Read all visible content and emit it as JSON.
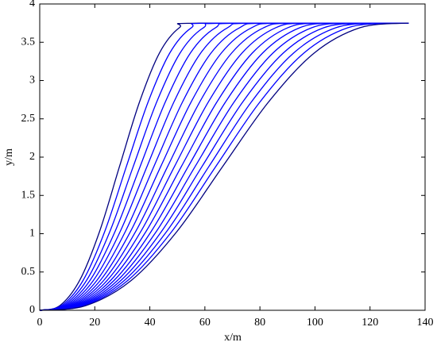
{
  "chart_data": {
    "type": "line",
    "xlabel": "x/m",
    "ylabel": "y/m",
    "xlim": [
      0,
      140
    ],
    "ylim": [
      0,
      4
    ],
    "xticks": [
      0,
      20,
      40,
      60,
      80,
      100,
      120,
      140
    ],
    "yticks": [
      0,
      0.5,
      1,
      1.5,
      2,
      2.5,
      3,
      3.5,
      4
    ],
    "series": [
      {
        "color": "#000080",
        "x": [
          0,
          7.25,
          14.5,
          21.75,
          29,
          36.25,
          43.5,
          50.75,
          58,
          134
        ],
        "values": [
          0,
          0.06,
          0.39,
          1.03,
          1.88,
          2.72,
          3.36,
          3.69,
          3.75,
          3.75
        ]
      },
      {
        "color": "#0000ff",
        "x": [
          0,
          7.875,
          15.75,
          23.625,
          31.5,
          39.375,
          47.25,
          55.125,
          63,
          134
        ],
        "values": [
          0,
          0.06,
          0.39,
          1.03,
          1.88,
          2.72,
          3.36,
          3.69,
          3.75,
          3.75
        ]
      },
      {
        "color": "#0000ff",
        "x": [
          0,
          8.5,
          17,
          25.5,
          34,
          42.5,
          51,
          59.5,
          68,
          134
        ],
        "values": [
          0,
          0.06,
          0.39,
          1.03,
          1.88,
          2.72,
          3.36,
          3.69,
          3.75,
          3.75
        ]
      },
      {
        "color": "#0000ff",
        "x": [
          0,
          9.125,
          18.25,
          27.375,
          36.5,
          45.625,
          54.75,
          63.875,
          73,
          134
        ],
        "values": [
          0,
          0.06,
          0.39,
          1.03,
          1.88,
          2.72,
          3.36,
          3.69,
          3.75,
          3.75
        ]
      },
      {
        "color": "#0000ff",
        "x": [
          0,
          9.75,
          19.5,
          29.25,
          39,
          48.75,
          58.5,
          68.25,
          78,
          134
        ],
        "values": [
          0,
          0.06,
          0.39,
          1.03,
          1.88,
          2.72,
          3.36,
          3.69,
          3.75,
          3.75
        ]
      },
      {
        "color": "#0000ff",
        "x": [
          0,
          10.375,
          20.75,
          31.125,
          41.5,
          51.875,
          62.25,
          72.625,
          83,
          134
        ],
        "values": [
          0,
          0.06,
          0.39,
          1.03,
          1.88,
          2.72,
          3.36,
          3.69,
          3.75,
          3.75
        ]
      },
      {
        "color": "#0000ff",
        "x": [
          0,
          11,
          22,
          33,
          44,
          55,
          66,
          77,
          88,
          134
        ],
        "values": [
          0,
          0.06,
          0.39,
          1.03,
          1.88,
          2.72,
          3.36,
          3.69,
          3.75,
          3.75
        ]
      },
      {
        "color": "#0000ff",
        "x": [
          0,
          11.625,
          23.25,
          34.875,
          46.5,
          58.125,
          69.75,
          81.375,
          93,
          134
        ],
        "values": [
          0,
          0.06,
          0.39,
          1.03,
          1.88,
          2.72,
          3.36,
          3.69,
          3.75,
          3.75
        ]
      },
      {
        "color": "#0000ff",
        "x": [
          0,
          12.25,
          24.5,
          36.75,
          49,
          61.25,
          73.5,
          85.75,
          98,
          134
        ],
        "values": [
          0,
          0.06,
          0.39,
          1.03,
          1.88,
          2.72,
          3.36,
          3.69,
          3.75,
          3.75
        ]
      },
      {
        "color": "#0000ff",
        "x": [
          0,
          12.875,
          25.75,
          38.625,
          51.5,
          64.375,
          77.25,
          90.125,
          103,
          134
        ],
        "values": [
          0,
          0.06,
          0.39,
          1.03,
          1.88,
          2.72,
          3.36,
          3.69,
          3.75,
          3.75
        ]
      },
      {
        "color": "#0000ff",
        "x": [
          0,
          13.5,
          27,
          40.5,
          54,
          67.5,
          81,
          94.5,
          108,
          134
        ],
        "values": [
          0,
          0.06,
          0.39,
          1.03,
          1.88,
          2.72,
          3.36,
          3.69,
          3.75,
          3.75
        ]
      },
      {
        "color": "#0000ff",
        "x": [
          0,
          14.125,
          28.25,
          42.375,
          56.5,
          70.625,
          84.75,
          98.875,
          113,
          134
        ],
        "values": [
          0,
          0.06,
          0.39,
          1.03,
          1.88,
          2.72,
          3.36,
          3.69,
          3.75,
          3.75
        ]
      },
      {
        "color": "#0000ff",
        "x": [
          0,
          14.75,
          29.5,
          44.25,
          59,
          73.75,
          88.5,
          103.25,
          118,
          134
        ],
        "values": [
          0,
          0.06,
          0.39,
          1.03,
          1.88,
          2.72,
          3.36,
          3.69,
          3.75,
          3.75
        ]
      },
      {
        "color": "#0000ff",
        "x": [
          0,
          15.375,
          30.75,
          46.125,
          61.5,
          76.875,
          92.25,
          107.625,
          123,
          134
        ],
        "values": [
          0,
          0.06,
          0.39,
          1.03,
          1.88,
          2.72,
          3.36,
          3.69,
          3.75,
          3.75
        ]
      },
      {
        "color": "#0000ff",
        "x": [
          0,
          16,
          32,
          48,
          64,
          80,
          96,
          112,
          128,
          134
        ],
        "values": [
          0,
          0.06,
          0.39,
          1.03,
          1.88,
          2.72,
          3.36,
          3.69,
          3.75,
          3.75
        ]
      },
      {
        "color": "#000080",
        "x": [
          0,
          16.625,
          33.25,
          49.875,
          66.5,
          83.125,
          99.75,
          116.375,
          133,
          134
        ],
        "values": [
          0,
          0.06,
          0.39,
          1.03,
          1.88,
          2.72,
          3.36,
          3.69,
          3.75,
          3.75
        ]
      }
    ]
  }
}
